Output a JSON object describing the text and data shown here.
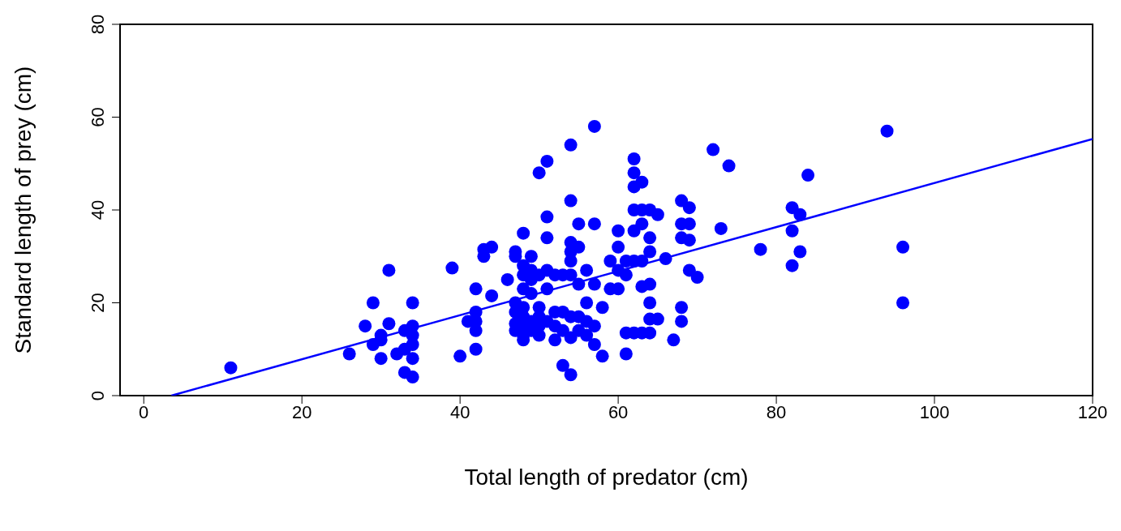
{
  "chart_data": {
    "type": "scatter",
    "xlabel": "Total length of predator (cm)",
    "ylabel": "Standard length of prey (cm)",
    "xlim": [
      -3,
      120
    ],
    "ylim": [
      0,
      80
    ],
    "xticks": [
      0,
      20,
      40,
      60,
      80,
      100,
      120
    ],
    "yticks": [
      0,
      20,
      40,
      60,
      80
    ],
    "grid": false,
    "series": [
      {
        "color": "#0000ff",
        "marker": "circle",
        "x": [
          11,
          26,
          28,
          29,
          29,
          30,
          30,
          30,
          31,
          31,
          32,
          33,
          33,
          33,
          34,
          34,
          34,
          34,
          34,
          34,
          39,
          40,
          41,
          42,
          42,
          42,
          42,
          42,
          43,
          43,
          44,
          44,
          46,
          47,
          47,
          47,
          47,
          47,
          47,
          48,
          48,
          48,
          48,
          48,
          48,
          48,
          48,
          48,
          49,
          49,
          49,
          49,
          49,
          49,
          50,
          50,
          50,
          50,
          50,
          50,
          51,
          51,
          51,
          51,
          51,
          51,
          52,
          52,
          52,
          52,
          53,
          53,
          53,
          53,
          54,
          54,
          54,
          54,
          54,
          54,
          54,
          54,
          54,
          55,
          55,
          55,
          55,
          55,
          56,
          56,
          56,
          56,
          57,
          57,
          57,
          57,
          57,
          58,
          58,
          59,
          59,
          60,
          60,
          60,
          60,
          61,
          61,
          61,
          61,
          62,
          62,
          62,
          62,
          62,
          62,
          62,
          63,
          63,
          63,
          63,
          63,
          63,
          64,
          64,
          64,
          64,
          64,
          64,
          64,
          65,
          65,
          66,
          67,
          68,
          68,
          68,
          68,
          68,
          69,
          69,
          69,
          69,
          70,
          72,
          73,
          74,
          78,
          82,
          82,
          82,
          83,
          83,
          84,
          94,
          96,
          96
        ],
        "values": [
          6,
          9,
          15,
          20,
          11,
          12,
          13,
          8,
          27,
          15.5,
          9,
          5,
          10,
          14,
          4,
          8,
          11,
          15,
          20,
          13,
          27.5,
          8.5,
          16,
          23,
          18,
          14,
          10,
          16,
          31.5,
          30,
          32,
          21.5,
          25,
          31,
          30,
          20,
          18,
          15.5,
          14,
          35,
          28,
          26,
          23,
          19,
          17,
          15,
          13,
          12,
          30,
          27,
          25,
          22,
          16,
          14,
          48,
          26,
          19,
          17,
          15,
          13,
          50.5,
          38.5,
          34,
          27,
          23,
          16,
          26,
          18,
          15,
          12,
          26,
          18,
          14,
          6.5,
          54,
          42,
          33,
          31,
          29,
          26,
          17,
          12.5,
          4.5,
          37,
          32,
          24,
          17,
          14,
          27,
          20,
          16,
          13,
          58,
          37,
          24,
          15,
          11,
          19,
          8.5,
          29,
          23,
          35.5,
          32,
          27,
          23,
          29,
          26,
          13.5,
          9,
          51,
          48,
          45,
          40,
          35.5,
          29,
          13.5,
          46,
          40,
          37,
          29,
          23.5,
          13.5,
          40,
          34,
          31,
          24,
          20,
          16.5,
          13.5,
          39,
          16.5,
          29.5,
          12,
          42,
          37,
          34,
          19,
          16,
          40.5,
          37,
          33.5,
          27,
          25.5,
          53,
          36,
          49.5,
          31.5,
          40.5,
          35.5,
          28,
          39,
          31,
          47.5,
          57,
          32,
          20
        ]
      },
      {
        "type": "line",
        "color": "#0000ff",
        "marker": "none",
        "x": [
          3.5,
          120
        ],
        "values": [
          0,
          55.3
        ]
      }
    ]
  }
}
